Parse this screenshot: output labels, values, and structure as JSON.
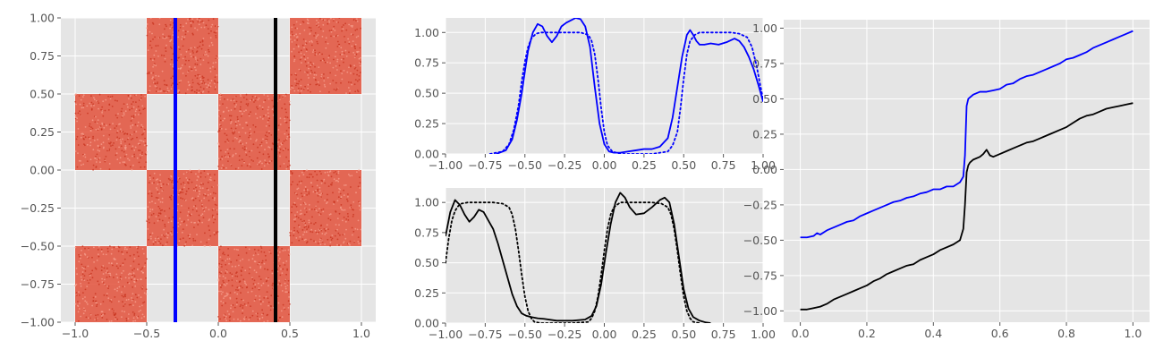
{
  "chart_data": [
    {
      "id": "scatter-panel",
      "type": "scatter",
      "title": "",
      "xlabel": "",
      "ylabel": "",
      "xlim": [
        -1.1,
        1.1
      ],
      "ylim": [
        -1.0,
        1.0
      ],
      "xticks": [
        -1.0,
        -0.5,
        0.0,
        0.5,
        1.0
      ],
      "xtick_labels": [
        "−1.0",
        "−0.5",
        "0.0",
        "0.5",
        "1.0"
      ],
      "yticks": [
        -1.0,
        -0.75,
        -0.5,
        -0.25,
        0.0,
        0.25,
        0.5,
        0.75,
        1.0
      ],
      "ytick_labels": [
        "−1.00",
        "−0.75",
        "−0.50",
        "−0.25",
        "0.00",
        "0.25",
        "0.50",
        "0.75",
        "1.00"
      ],
      "grid": true,
      "point_color": "#e24a33",
      "filled_regions": [
        {
          "x": [
            -1.0,
            -0.5
          ],
          "y": [
            0.0,
            0.5
          ]
        },
        {
          "x": [
            -1.0,
            -0.5
          ],
          "y": [
            -1.0,
            -0.5
          ]
        },
        {
          "x": [
            -0.5,
            0.0
          ],
          "y": [
            0.5,
            1.0
          ]
        },
        {
          "x": [
            -0.5,
            0.0
          ],
          "y": [
            -0.5,
            0.0
          ]
        },
        {
          "x": [
            0.0,
            0.5
          ],
          "y": [
            0.0,
            0.5
          ]
        },
        {
          "x": [
            0.0,
            0.5
          ],
          "y": [
            -1.0,
            -0.5
          ]
        },
        {
          "x": [
            0.5,
            1.0
          ],
          "y": [
            0.5,
            1.0
          ]
        },
        {
          "x": [
            0.5,
            1.0
          ],
          "y": [
            -0.5,
            0.0
          ]
        }
      ],
      "vlines": [
        {
          "x": -0.3,
          "color": "#0000ff"
        },
        {
          "x": 0.4,
          "color": "#000000"
        }
      ]
    },
    {
      "id": "density-top",
      "type": "line",
      "title": "",
      "xlim": [
        -1.0,
        1.0
      ],
      "ylim": [
        0.0,
        1.12
      ],
      "xticks": [
        -1.0,
        -0.75,
        -0.5,
        -0.25,
        0.0,
        0.25,
        0.5,
        0.75,
        1.0
      ],
      "xtick_labels": [
        "−1.00",
        "−0.75",
        "−0.50",
        "−0.25",
        "0.00",
        "0.25",
        "0.50",
        "0.75",
        "1.00"
      ],
      "yticks": [
        0.0,
        0.25,
        0.5,
        0.75,
        1.0
      ],
      "ytick_labels": [
        "0.00",
        "0.25",
        "0.50",
        "0.75",
        "1.00"
      ],
      "grid": true,
      "series": [
        {
          "style": "solid",
          "color": "#0000ff",
          "x": [
            -0.68,
            -0.62,
            -0.58,
            -0.55,
            -0.52,
            -0.5,
            -0.48,
            -0.45,
            -0.42,
            -0.39,
            -0.36,
            -0.33,
            -0.3,
            -0.27,
            -0.24,
            -0.21,
            -0.18,
            -0.15,
            -0.12,
            -0.09,
            -0.06,
            -0.03,
            0.0,
            0.03,
            0.06,
            0.1,
            0.15,
            0.2,
            0.25,
            0.3,
            0.35,
            0.4,
            0.43,
            0.46,
            0.49,
            0.52,
            0.54,
            0.56,
            0.58,
            0.6,
            0.63,
            0.67,
            0.72,
            0.77,
            0.82,
            0.85,
            0.88,
            0.91,
            0.94,
            0.97,
            1.0
          ],
          "y": [
            0.0,
            0.03,
            0.12,
            0.28,
            0.5,
            0.68,
            0.85,
            1.0,
            1.07,
            1.05,
            0.97,
            0.92,
            0.97,
            1.05,
            1.08,
            1.1,
            1.12,
            1.11,
            1.05,
            0.88,
            0.55,
            0.25,
            0.08,
            0.02,
            0.01,
            0.01,
            0.02,
            0.03,
            0.04,
            0.04,
            0.06,
            0.13,
            0.3,
            0.55,
            0.8,
            0.98,
            1.02,
            0.98,
            0.93,
            0.9,
            0.9,
            0.91,
            0.9,
            0.92,
            0.95,
            0.93,
            0.88,
            0.8,
            0.7,
            0.57,
            0.43
          ]
        },
        {
          "style": "dotted",
          "color": "#0000ff",
          "x": [
            -0.72,
            -0.64,
            -0.6,
            -0.57,
            -0.54,
            -0.52,
            -0.5,
            -0.48,
            -0.46,
            -0.43,
            -0.4,
            -0.35,
            -0.3,
            -0.25,
            -0.2,
            -0.15,
            -0.1,
            -0.08,
            -0.06,
            -0.04,
            -0.02,
            0.0,
            0.02,
            0.05,
            0.1,
            0.2,
            0.3,
            0.4,
            0.43,
            0.46,
            0.48,
            0.5,
            0.52,
            0.54,
            0.57,
            0.6,
            0.65,
            0.7,
            0.75,
            0.8,
            0.85,
            0.9,
            0.93,
            0.96,
            0.98,
            1.0
          ],
          "y": [
            0.0,
            0.02,
            0.08,
            0.2,
            0.4,
            0.6,
            0.76,
            0.88,
            0.95,
            0.99,
            1.0,
            1.0,
            1.0,
            1.0,
            1.0,
            1.0,
            0.98,
            0.93,
            0.82,
            0.62,
            0.38,
            0.18,
            0.07,
            0.02,
            0.0,
            0.0,
            0.0,
            0.02,
            0.07,
            0.18,
            0.38,
            0.62,
            0.82,
            0.93,
            0.98,
            1.0,
            1.0,
            1.0,
            1.0,
            1.0,
            0.99,
            0.96,
            0.88,
            0.72,
            0.58,
            0.45
          ]
        }
      ]
    },
    {
      "id": "density-bottom",
      "type": "line",
      "title": "",
      "xlim": [
        -1.0,
        1.0
      ],
      "ylim": [
        0.0,
        1.12
      ],
      "xticks": [
        -1.0,
        -0.75,
        -0.5,
        -0.25,
        0.0,
        0.25,
        0.5,
        0.75,
        1.0
      ],
      "xtick_labels": [
        "−1.00",
        "−0.75",
        "−0.50",
        "−0.25",
        "0.00",
        "0.25",
        "0.50",
        "0.75",
        "1.00"
      ],
      "yticks": [
        0.0,
        0.25,
        0.5,
        0.75,
        1.0
      ],
      "ytick_labels": [
        "0.00",
        "0.25",
        "0.50",
        "0.75",
        "1.00"
      ],
      "grid": true,
      "series": [
        {
          "style": "solid",
          "color": "#000000",
          "x": [
            -1.0,
            -0.97,
            -0.94,
            -0.91,
            -0.88,
            -0.85,
            -0.82,
            -0.79,
            -0.76,
            -0.73,
            -0.7,
            -0.67,
            -0.64,
            -0.61,
            -0.58,
            -0.55,
            -0.52,
            -0.49,
            -0.46,
            -0.42,
            -0.38,
            -0.3,
            -0.2,
            -0.12,
            -0.08,
            -0.05,
            -0.02,
            0.01,
            0.04,
            0.07,
            0.1,
            0.13,
            0.16,
            0.2,
            0.25,
            0.3,
            0.35,
            0.38,
            0.41,
            0.44,
            0.47,
            0.5,
            0.53,
            0.56,
            0.6,
            0.64,
            0.67
          ],
          "y": [
            0.72,
            0.92,
            1.02,
            0.98,
            0.9,
            0.84,
            0.88,
            0.94,
            0.92,
            0.85,
            0.78,
            0.66,
            0.52,
            0.38,
            0.24,
            0.14,
            0.08,
            0.06,
            0.05,
            0.04,
            0.035,
            0.02,
            0.02,
            0.03,
            0.06,
            0.14,
            0.32,
            0.58,
            0.82,
            1.0,
            1.08,
            1.04,
            0.96,
            0.9,
            0.91,
            0.96,
            1.02,
            1.04,
            1.0,
            0.82,
            0.55,
            0.28,
            0.12,
            0.05,
            0.02,
            0.005,
            0.0
          ]
        },
        {
          "style": "dotted",
          "color": "#000000",
          "x": [
            -1.0,
            -0.98,
            -0.96,
            -0.94,
            -0.92,
            -0.9,
            -0.86,
            -0.8,
            -0.7,
            -0.64,
            -0.6,
            -0.58,
            -0.56,
            -0.54,
            -0.52,
            -0.5,
            -0.48,
            -0.46,
            -0.44,
            -0.4,
            -0.3,
            -0.2,
            -0.1,
            -0.08,
            -0.06,
            -0.04,
            -0.02,
            0.0,
            0.02,
            0.04,
            0.06,
            0.1,
            0.2,
            0.3,
            0.36,
            0.4,
            0.42,
            0.44,
            0.46,
            0.48,
            0.5,
            0.52,
            0.54,
            0.56,
            0.6
          ],
          "y": [
            0.5,
            0.7,
            0.85,
            0.93,
            0.97,
            0.99,
            1.0,
            1.0,
            1.0,
            0.99,
            0.96,
            0.9,
            0.78,
            0.6,
            0.4,
            0.22,
            0.1,
            0.04,
            0.01,
            0.0,
            0.0,
            0.0,
            0.01,
            0.04,
            0.1,
            0.22,
            0.4,
            0.6,
            0.78,
            0.9,
            0.96,
            1.0,
            1.0,
            1.0,
            0.99,
            0.96,
            0.9,
            0.78,
            0.6,
            0.4,
            0.22,
            0.1,
            0.04,
            0.01,
            0.0
          ]
        }
      ]
    },
    {
      "id": "quantile-panel",
      "type": "line",
      "title": "",
      "xlim": [
        -0.05,
        1.05
      ],
      "ylim": [
        -1.08,
        1.06
      ],
      "xticks": [
        0.0,
        0.2,
        0.4,
        0.6,
        0.8,
        1.0
      ],
      "xtick_labels": [
        "0.0",
        "0.2",
        "0.4",
        "0.6",
        "0.8",
        "1.0"
      ],
      "yticks": [
        -1.0,
        -0.75,
        -0.5,
        -0.25,
        0.0,
        0.25,
        0.5,
        0.75,
        1.0
      ],
      "ytick_labels": [
        "−1.00",
        "−0.75",
        "−0.50",
        "−0.25",
        "0.00",
        "0.25",
        "0.50",
        "0.75",
        "1.00"
      ],
      "grid": true,
      "series": [
        {
          "style": "solid",
          "color": "#0000ff",
          "x": [
            0.0,
            0.02,
            0.04,
            0.05,
            0.06,
            0.08,
            0.1,
            0.12,
            0.14,
            0.16,
            0.18,
            0.2,
            0.22,
            0.24,
            0.26,
            0.28,
            0.3,
            0.32,
            0.34,
            0.36,
            0.38,
            0.4,
            0.42,
            0.44,
            0.46,
            0.48,
            0.49,
            0.495,
            0.5,
            0.505,
            0.51,
            0.52,
            0.54,
            0.56,
            0.58,
            0.6,
            0.62,
            0.64,
            0.66,
            0.68,
            0.7,
            0.72,
            0.74,
            0.76,
            0.78,
            0.8,
            0.82,
            0.84,
            0.86,
            0.88,
            0.9,
            0.92,
            0.94,
            0.96,
            0.98,
            1.0
          ],
          "y": [
            -0.48,
            -0.48,
            -0.47,
            -0.45,
            -0.46,
            -0.43,
            -0.41,
            -0.39,
            -0.37,
            -0.36,
            -0.33,
            -0.31,
            -0.29,
            -0.27,
            -0.25,
            -0.23,
            -0.22,
            -0.2,
            -0.19,
            -0.17,
            -0.16,
            -0.14,
            -0.14,
            -0.12,
            -0.12,
            -0.09,
            -0.05,
            0.1,
            0.45,
            0.5,
            0.51,
            0.53,
            0.55,
            0.55,
            0.56,
            0.57,
            0.6,
            0.61,
            0.64,
            0.66,
            0.67,
            0.69,
            0.71,
            0.73,
            0.75,
            0.78,
            0.79,
            0.81,
            0.83,
            0.86,
            0.88,
            0.9,
            0.92,
            0.94,
            0.96,
            0.98
          ]
        },
        {
          "style": "solid",
          "color": "#000000",
          "x": [
            0.0,
            0.02,
            0.04,
            0.06,
            0.08,
            0.1,
            0.12,
            0.14,
            0.16,
            0.18,
            0.2,
            0.22,
            0.24,
            0.26,
            0.28,
            0.3,
            0.32,
            0.34,
            0.36,
            0.38,
            0.4,
            0.42,
            0.44,
            0.46,
            0.48,
            0.49,
            0.495,
            0.5,
            0.505,
            0.51,
            0.52,
            0.54,
            0.55,
            0.56,
            0.57,
            0.58,
            0.6,
            0.62,
            0.64,
            0.66,
            0.68,
            0.7,
            0.72,
            0.74,
            0.76,
            0.78,
            0.8,
            0.82,
            0.84,
            0.86,
            0.88,
            0.9,
            0.92,
            0.94,
            0.96,
            0.98,
            1.0
          ],
          "y": [
            -0.99,
            -0.99,
            -0.98,
            -0.97,
            -0.95,
            -0.92,
            -0.9,
            -0.88,
            -0.86,
            -0.84,
            -0.82,
            -0.79,
            -0.77,
            -0.74,
            -0.72,
            -0.7,
            -0.68,
            -0.67,
            -0.64,
            -0.62,
            -0.6,
            -0.57,
            -0.55,
            -0.53,
            -0.5,
            -0.42,
            -0.25,
            -0.02,
            0.03,
            0.05,
            0.07,
            0.09,
            0.11,
            0.14,
            0.1,
            0.09,
            0.11,
            0.13,
            0.15,
            0.17,
            0.19,
            0.2,
            0.22,
            0.24,
            0.26,
            0.28,
            0.3,
            0.33,
            0.36,
            0.38,
            0.39,
            0.41,
            0.43,
            0.44,
            0.45,
            0.46,
            0.47
          ]
        }
      ]
    }
  ]
}
